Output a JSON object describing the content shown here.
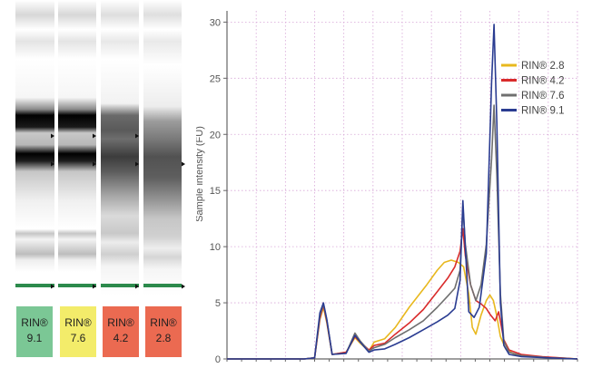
{
  "gel": {
    "lanes": [
      {
        "label": "RIN®",
        "value": "9.1",
        "color": "#7bc795"
      },
      {
        "label": "RIN®",
        "value": "7.6",
        "color": "#f3ec6a"
      },
      {
        "label": "RIN®",
        "value": "4.2",
        "color": "#eb6a51"
      },
      {
        "label": "RIN®",
        "value": "2.8",
        "color": "#eb6a51"
      }
    ]
  },
  "chart_data": {
    "type": "line",
    "title": "",
    "xlabel": "",
    "ylabel": "Sample intensity (FU)",
    "ylim": [
      0,
      31
    ],
    "y_ticks": [
      0,
      5,
      10,
      15,
      20,
      25,
      30
    ],
    "xlim": [
      0,
      100
    ],
    "x_tick_labels": [],
    "grid": true,
    "legend_position": "top-right",
    "series": [
      {
        "name": "RIN® 2.8",
        "color": "#e8b81e",
        "points": [
          [
            0,
            0
          ],
          [
            22,
            0
          ],
          [
            25,
            0.1
          ],
          [
            26.5,
            3.5
          ],
          [
            27.5,
            4.6
          ],
          [
            28.5,
            3.2
          ],
          [
            30,
            0.4
          ],
          [
            34,
            0.6
          ],
          [
            36.5,
            1.9
          ],
          [
            38,
            1.4
          ],
          [
            40.5,
            0.7
          ],
          [
            42,
            1.5
          ],
          [
            45,
            1.8
          ],
          [
            48,
            2.8
          ],
          [
            52,
            4.6
          ],
          [
            57,
            6.6
          ],
          [
            60,
            7.9
          ],
          [
            62,
            8.6
          ],
          [
            64,
            8.8
          ],
          [
            66,
            8.6
          ],
          [
            67.5,
            8.2
          ],
          [
            69,
            5.8
          ],
          [
            70,
            2.8
          ],
          [
            71,
            2.2
          ],
          [
            72.5,
            3.9
          ],
          [
            74,
            5.2
          ],
          [
            75,
            5.7
          ],
          [
            76,
            5.2
          ],
          [
            77,
            3.8
          ],
          [
            78,
            2.0
          ],
          [
            79.5,
            0.9
          ],
          [
            82,
            0.4
          ],
          [
            86,
            0.2
          ],
          [
            95,
            0.1
          ],
          [
            100,
            0
          ]
        ]
      },
      {
        "name": "RIN® 4.2",
        "color": "#d92b2b",
        "points": [
          [
            0,
            0
          ],
          [
            22,
            0
          ],
          [
            25,
            0.1
          ],
          [
            26.5,
            3.6
          ],
          [
            27.5,
            4.8
          ],
          [
            28.5,
            3.3
          ],
          [
            30,
            0.4
          ],
          [
            34,
            0.6
          ],
          [
            36.5,
            2.0
          ],
          [
            38,
            1.5
          ],
          [
            40.5,
            0.8
          ],
          [
            42,
            1.2
          ],
          [
            45,
            1.4
          ],
          [
            48,
            2.2
          ],
          [
            52,
            3.2
          ],
          [
            56,
            4.4
          ],
          [
            60,
            6.0
          ],
          [
            63,
            7.2
          ],
          [
            65,
            8.2
          ],
          [
            66.5,
            9.6
          ],
          [
            67.3,
            11.6
          ],
          [
            68,
            9.2
          ],
          [
            69.5,
            6.6
          ],
          [
            71,
            5.2
          ],
          [
            72.5,
            4.9
          ],
          [
            74,
            4.5
          ],
          [
            75,
            4.0
          ],
          [
            76.5,
            3.4
          ],
          [
            77.5,
            4.2
          ],
          [
            79,
            1.7
          ],
          [
            80.5,
            0.8
          ],
          [
            84,
            0.4
          ],
          [
            90,
            0.2
          ],
          [
            100,
            0
          ]
        ]
      },
      {
        "name": "RIN® 7.6",
        "color": "#6f6f6f",
        "points": [
          [
            0,
            0
          ],
          [
            22,
            0
          ],
          [
            25,
            0.1
          ],
          [
            26.5,
            3.8
          ],
          [
            27.5,
            4.9
          ],
          [
            28.5,
            3.4
          ],
          [
            30,
            0.4
          ],
          [
            34,
            0.5
          ],
          [
            36.5,
            2.3
          ],
          [
            38,
            1.6
          ],
          [
            40.5,
            0.7
          ],
          [
            42,
            1.0
          ],
          [
            45,
            1.3
          ],
          [
            48,
            1.9
          ],
          [
            52,
            2.6
          ],
          [
            56,
            3.4
          ],
          [
            60,
            4.6
          ],
          [
            63,
            5.6
          ],
          [
            65,
            6.3
          ],
          [
            66.5,
            7.9
          ],
          [
            67.3,
            13.6
          ],
          [
            68,
            10.2
          ],
          [
            69.5,
            6.6
          ],
          [
            71,
            5.2
          ],
          [
            72.5,
            6.6
          ],
          [
            74,
            10.2
          ],
          [
            75.5,
            17.8
          ],
          [
            76.2,
            22.6
          ],
          [
            77,
            16.4
          ],
          [
            78,
            5.8
          ],
          [
            79,
            1.6
          ],
          [
            80.5,
            0.6
          ],
          [
            84,
            0.3
          ],
          [
            92,
            0.1
          ],
          [
            100,
            0
          ]
        ]
      },
      {
        "name": "RIN® 9.1",
        "color": "#2a3c91",
        "points": [
          [
            0,
            0
          ],
          [
            22,
            0
          ],
          [
            25,
            0.1
          ],
          [
            26.5,
            4.1
          ],
          [
            27.5,
            5.0
          ],
          [
            28.5,
            3.5
          ],
          [
            30,
            0.4
          ],
          [
            34,
            0.5
          ],
          [
            36.5,
            2.1
          ],
          [
            38,
            1.5
          ],
          [
            40.5,
            0.6
          ],
          [
            42,
            0.8
          ],
          [
            45,
            0.9
          ],
          [
            48,
            1.3
          ],
          [
            52,
            1.9
          ],
          [
            56,
            2.6
          ],
          [
            60,
            3.3
          ],
          [
            63,
            3.9
          ],
          [
            65,
            4.5
          ],
          [
            66.5,
            7.0
          ],
          [
            67.3,
            14.1
          ],
          [
            68,
            9.9
          ],
          [
            69,
            4.2
          ],
          [
            70.5,
            3.7
          ],
          [
            72,
            4.6
          ],
          [
            74,
            9.4
          ],
          [
            75.5,
            24.6
          ],
          [
            76.2,
            29.8
          ],
          [
            77,
            21.0
          ],
          [
            78,
            5.0
          ],
          [
            79,
            1.2
          ],
          [
            80.5,
            0.4
          ],
          [
            84,
            0.2
          ],
          [
            92,
            0.1
          ],
          [
            100,
            0
          ]
        ]
      }
    ]
  }
}
